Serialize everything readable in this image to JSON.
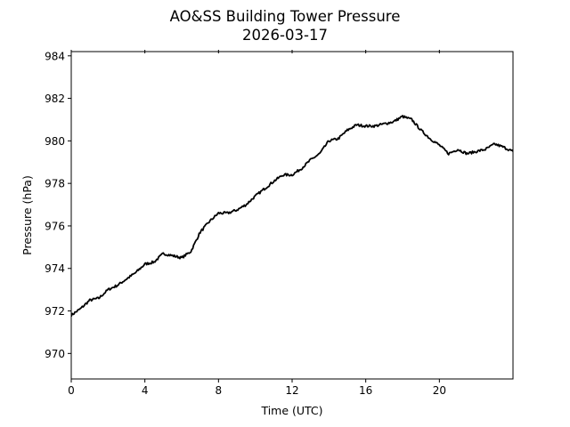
{
  "chart_data": {
    "type": "line",
    "title": "AO&SS Building Tower Pressure",
    "subtitle": "2026-03-17",
    "xlabel": "Time (UTC)",
    "ylabel": "Pressure (hPa)",
    "xlim": [
      0,
      24
    ],
    "ylim": [
      968.8,
      984.2
    ],
    "xticks": [
      0,
      4,
      8,
      12,
      16,
      20
    ],
    "xtick_labels": [
      "0",
      "4",
      "8",
      "12",
      "16",
      "20"
    ],
    "yticks": [
      970,
      972,
      974,
      976,
      978,
      980,
      982,
      984
    ],
    "ytick_labels": [
      "970",
      "972",
      "974",
      "976",
      "978",
      "980",
      "982",
      "984"
    ],
    "grid": false,
    "line_color": "#000000",
    "series": [
      {
        "name": "Pressure",
        "x": [
          0,
          0.5,
          1,
          1.5,
          2,
          2.5,
          3,
          3.5,
          4,
          4.5,
          5,
          5.5,
          6,
          6.5,
          7,
          7.5,
          8,
          8.5,
          9,
          9.5,
          10,
          10.5,
          11,
          11.5,
          12,
          12.5,
          13,
          13.5,
          14,
          14.5,
          15,
          15.5,
          16,
          16.5,
          17,
          17.5,
          18,
          18.5,
          19,
          19.5,
          20,
          20.5,
          21,
          21.5,
          22,
          22.5,
          23,
          23.5,
          24
        ],
        "values": [
          971.8,
          972.1,
          972.5,
          972.6,
          973.0,
          973.2,
          973.5,
          973.8,
          974.2,
          974.3,
          974.7,
          974.6,
          974.5,
          974.8,
          975.7,
          976.2,
          976.6,
          976.6,
          976.75,
          977.0,
          977.4,
          977.75,
          978.1,
          978.4,
          978.4,
          978.7,
          979.1,
          979.4,
          980.0,
          980.1,
          980.5,
          980.75,
          980.7,
          980.7,
          980.8,
          980.9,
          981.15,
          981.0,
          980.5,
          980.1,
          979.8,
          979.4,
          979.6,
          979.4,
          979.5,
          979.6,
          979.85,
          979.7,
          979.5
        ]
      }
    ]
  }
}
